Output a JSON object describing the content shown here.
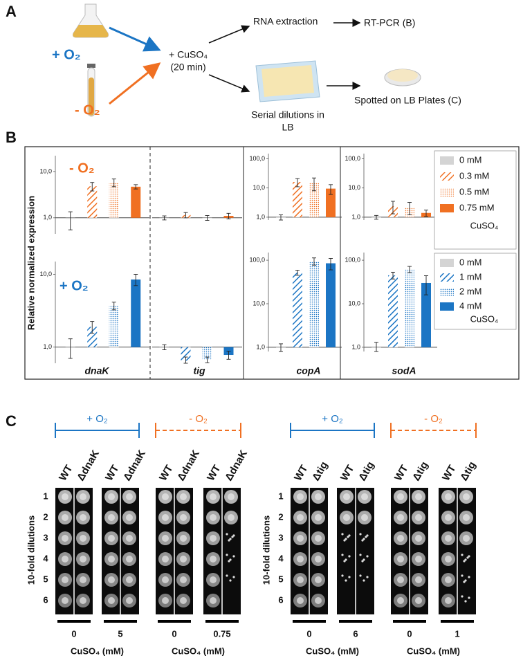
{
  "panel_a": {
    "label": "A",
    "plus_o2": "+ O₂",
    "minus_o2": "- O₂",
    "treatment": "+ CuSO₄",
    "time": "(20 min)",
    "rna": "RNA extraction",
    "rtpcr": "RT-PCR (B)",
    "dilutions": [
      "Serial dilutions in",
      "LB"
    ],
    "spotted": "Spotted on LB Plates (C)"
  },
  "panel_b": {
    "label": "B",
    "y_label": "Relative normalized expression",
    "row_labels": [
      "- O₂",
      "+ O₂"
    ],
    "genes": [
      "dnaK",
      "tig",
      "copA",
      "sodA"
    ],
    "legends": [
      {
        "items": [
          {
            "name": "0 mM",
            "color": "#d4d4d4",
            "pattern": "solid"
          },
          {
            "name": "0.3 mM",
            "color": "#f07022",
            "pattern": "hatch"
          },
          {
            "name": "0.5 mM",
            "color": "#f07022",
            "pattern": "dots"
          },
          {
            "name": "0.75 mM",
            "color": "#f07022",
            "pattern": "solid"
          }
        ],
        "note": "CuSO₄"
      },
      {
        "items": [
          {
            "name": "0 mM",
            "color": "#d4d4d4",
            "pattern": "solid"
          },
          {
            "name": "1 mM",
            "color": "#1b75c4",
            "pattern": "hatch"
          },
          {
            "name": "2 mM",
            "color": "#1b75c4",
            "pattern": "dots"
          },
          {
            "name": "4 mM",
            "color": "#1b75c4",
            "pattern": "solid"
          }
        ],
        "note": "CuSO₄"
      }
    ]
  },
  "chart_data": [
    {
      "type": "bar",
      "log": true,
      "ylim": [
        0.45,
        22
      ],
      "yticks": [
        {
          "value": 1,
          "label": "1,0"
        },
        {
          "value": 10,
          "label": "10,0"
        }
      ],
      "values": [
        0.95,
        4.8,
        5.8,
        4.7
      ],
      "errors": [
        0.4,
        1.0,
        1.1,
        0.5
      ]
    },
    {
      "type": "bar",
      "log": true,
      "ylim": [
        0.45,
        22
      ],
      "values": [
        1.0,
        1.15,
        1.0,
        1.1
      ],
      "errors": [
        0.1,
        0.15,
        0.12,
        0.15
      ]
    },
    {
      "type": "bar",
      "log": true,
      "ylim": [
        0.8,
        150
      ],
      "yticks": [
        {
          "value": 1,
          "label": "1,0"
        },
        {
          "value": 10,
          "label": "10,0"
        },
        {
          "value": 100,
          "label": "100,0"
        }
      ],
      "values": [
        1.0,
        16,
        15,
        9.5
      ],
      "errors": [
        0.2,
        5,
        7,
        3.5
      ]
    },
    {
      "type": "bar",
      "log": true,
      "ylim": [
        0.8,
        150
      ],
      "yticks": [
        {
          "value": 1,
          "label": "1,0"
        },
        {
          "value": 10,
          "label": "10,0"
        },
        {
          "value": 100,
          "label": "100,0"
        }
      ],
      "values": [
        1.0,
        2.4,
        2.2,
        1.4
      ],
      "errors": [
        0.15,
        1.1,
        1.0,
        0.35
      ]
    },
    {
      "type": "bar",
      "log": true,
      "ylim": [
        0.6,
        15
      ],
      "yticks": [
        {
          "value": 1,
          "label": "1,0"
        },
        {
          "value": 10,
          "label": "10,0"
        }
      ],
      "values": [
        1.0,
        1.9,
        3.7,
        8.5
      ],
      "errors": [
        0.3,
        0.35,
        0.45,
        1.5
      ]
    },
    {
      "type": "bar",
      "log": true,
      "ylim": [
        0.6,
        15
      ],
      "values": [
        1.0,
        0.65,
        0.67,
        0.78
      ],
      "errors": [
        0.08,
        0.08,
        0.06,
        0.1
      ]
    },
    {
      "type": "bar",
      "log": true,
      "ylim": [
        0.8,
        150
      ],
      "yticks": [
        {
          "value": 1,
          "label": "1,0"
        },
        {
          "value": 10,
          "label": "10,0"
        },
        {
          "value": 100,
          "label": "100,0"
        }
      ],
      "values": [
        1.0,
        52,
        95,
        85
      ],
      "errors": [
        0.2,
        7,
        18,
        25
      ]
    },
    {
      "type": "bar",
      "log": true,
      "ylim": [
        0.8,
        150
      ],
      "yticks": [
        {
          "value": 1,
          "label": "1,0"
        },
        {
          "value": 10,
          "label": "10,0"
        },
        {
          "value": 100,
          "label": "100,0"
        }
      ],
      "values": [
        1.0,
        45,
        62,
        30
      ],
      "errors": [
        0.3,
        8,
        10,
        14
      ]
    }
  ],
  "panel_c": {
    "label": "C",
    "groups": [
      {
        "y_label": "10-fold dilutions",
        "rows": [
          "1",
          "2",
          "3",
          "4",
          "5",
          "6"
        ],
        "conditions": [
          {
            "label": "+ O₂",
            "plates": [
              {
                "strains": [
                  "WT",
                  "ΔdnaK"
                ],
                "conc": "0"
              },
              {
                "strains": [
                  "WT",
                  "ΔdnaK"
                ],
                "conc": "5"
              }
            ],
            "unit": "CuSO₄ (mM)"
          },
          {
            "label": "- O₂",
            "plates": [
              {
                "strains": [
                  "WT",
                  "ΔdnaK"
                ],
                "conc": "0"
              },
              {
                "strains": [
                  "WT",
                  "ΔdnaK"
                ],
                "conc": "0.75"
              }
            ],
            "unit": "CuSO₄ (mM)"
          }
        ]
      },
      {
        "y_label": "10-fold dilutions",
        "rows": [
          "1",
          "2",
          "3",
          "4",
          "5",
          "6"
        ],
        "conditions": [
          {
            "label": "+ O₂",
            "plates": [
              {
                "strains": [
                  "WT",
                  "Δtig"
                ],
                "conc": "0"
              },
              {
                "strains": [
                  "WT",
                  "Δtig"
                ],
                "conc": "6"
              }
            ],
            "unit": "CuSO₄ (mM)"
          },
          {
            "label": "- O₂",
            "plates": [
              {
                "strains": [
                  "WT",
                  "Δtig"
                ],
                "conc": "0"
              },
              {
                "strains": [
                  "WT",
                  "Δtig"
                ],
                "conc": "1"
              }
            ],
            "unit": "CuSO₄ (mM)"
          }
        ]
      }
    ]
  }
}
